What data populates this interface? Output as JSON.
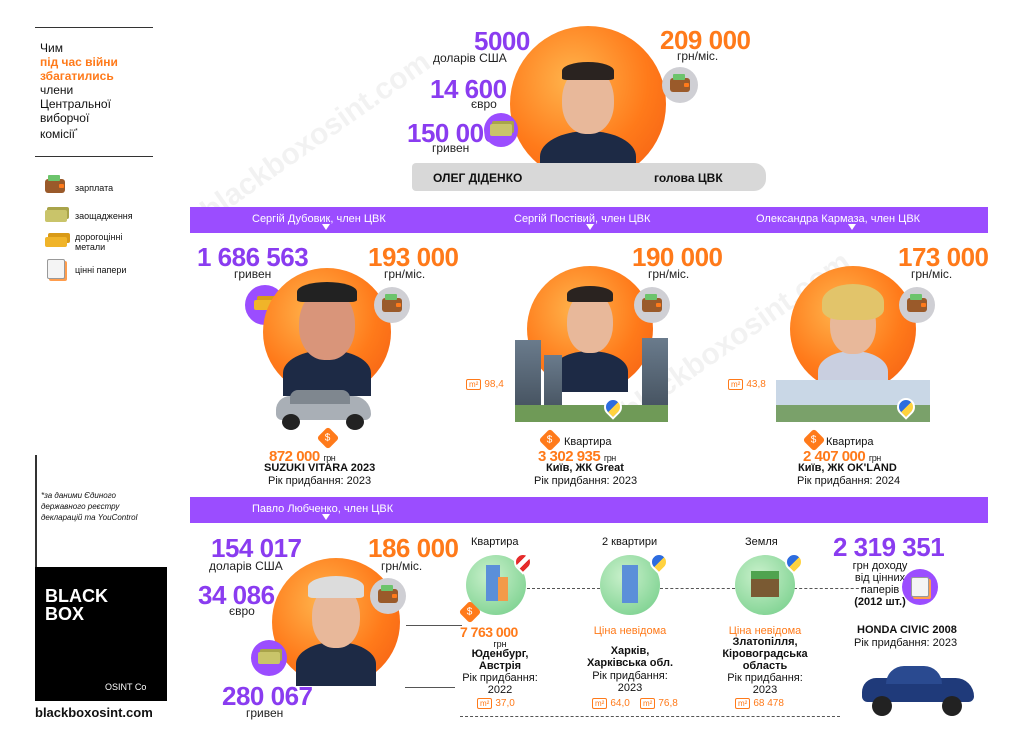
{
  "sidebar": {
    "title_line1": "Чим",
    "title_highlight1": "під час війни",
    "title_highlight2": "збагатились",
    "title_line4": "члени",
    "title_line5": "Центральної",
    "title_line6": "виборчої",
    "title_line7": "комісії",
    "title_footnote_mark": "*",
    "legend": [
      {
        "icon": "wallet-icon",
        "label": "зарплата"
      },
      {
        "icon": "cash-icon",
        "label": "заощадження"
      },
      {
        "icon": "gold-bars-icon",
        "label": "дорогоцінні метали"
      },
      {
        "icon": "securities-icon",
        "label": "цінні папери"
      }
    ],
    "footnote": "*за даними Єдиного державного реєстру декларацій та YouControl",
    "logo_line1": "BLACK",
    "logo_line2": "BOX",
    "logo_sub": "OSINT Co",
    "website": "blackboxosint.com"
  },
  "head": {
    "name": "ОЛЕГ ДІДЕНКО",
    "role": "голова ЦВК",
    "usd_value": "5000",
    "usd_unit": "доларів США",
    "eur_value": "14 600",
    "eur_unit": "євро",
    "uah_value": "150 000",
    "uah_unit": "гривен",
    "salary_value": "209 000",
    "salary_unit": "грн/міс."
  },
  "band1": {
    "member1": "Сергій Дубовик, член ЦВК",
    "member2": "Сергій Постівий, член ЦВК",
    "member3": "Олександра Кармаза, член ЦВК"
  },
  "dubovyk": {
    "savings_value": "1 686 563",
    "savings_unit": "гривен",
    "salary_value": "193 000",
    "salary_unit": "грн/міс.",
    "price": "872 000",
    "price_unit": "грн",
    "car": "SUZUKI VITARA 2023",
    "year": "Рік придбання: 2023"
  },
  "postivyi": {
    "salary_value": "190 000",
    "salary_unit": "грн/міс.",
    "area": "98,4",
    "type": "Квартира",
    "price": "3 302 935",
    "price_unit": "грн",
    "place": "Київ, ЖК Great",
    "year": "Рік придбання: 2023"
  },
  "karmaza": {
    "salary_value": "173 000",
    "salary_unit": "грн/міс.",
    "area": "43,8",
    "type": "Квартира",
    "price": "2 407 000",
    "price_unit": "грн",
    "place": "Київ, ЖК OK'LAND",
    "year": "Рік придбання: 2024"
  },
  "band2": {
    "member": "Павло Любченко, член ЦВК"
  },
  "lyubchenko": {
    "usd_value": "154 017",
    "usd_unit": "доларів США",
    "eur_value": "34 086",
    "eur_unit": "євро",
    "uah_value": "280 067",
    "uah_unit": "гривен",
    "salary_value": "186 000",
    "salary_unit": "грн/міс.",
    "prop1_type": "Квартира",
    "prop1_price": "7 763 000",
    "prop1_price_unit": "грн",
    "prop1_place1": "Юденбург,",
    "prop1_place2": "Австрія",
    "prop1_year1": "Рік придбання:",
    "prop1_year2": "2022",
    "prop1_area": "37,0",
    "prop2_type": "2 квартири",
    "prop2_price": "Ціна невідома",
    "prop2_place1": "Харків,",
    "prop2_place2": "Харківська обл.",
    "prop2_year1": "Рік придбання:",
    "prop2_year2": "2023",
    "prop2_area1": "64,0",
    "prop2_area2": "76,8",
    "prop3_type": "Земля",
    "prop3_price": "Ціна невідома",
    "prop3_place1": "Златопілля,",
    "prop3_place2": "Кіровоградська",
    "prop3_place3": "область",
    "prop3_year1": "Рік придбання:",
    "prop3_year2": "2023",
    "prop3_area": "68 478",
    "income_value": "2 319 351",
    "income_text1": "грн доходу",
    "income_text2": "від цінних",
    "income_text3": "паперів",
    "income_text4": "(2012 шт.)",
    "car": "HONDA CIVIC 2008",
    "car_year": "Рік придбання: 2023"
  },
  "colors": {
    "accent_purple": "#9b4dff",
    "accent_orange": "#ff7a1a"
  }
}
